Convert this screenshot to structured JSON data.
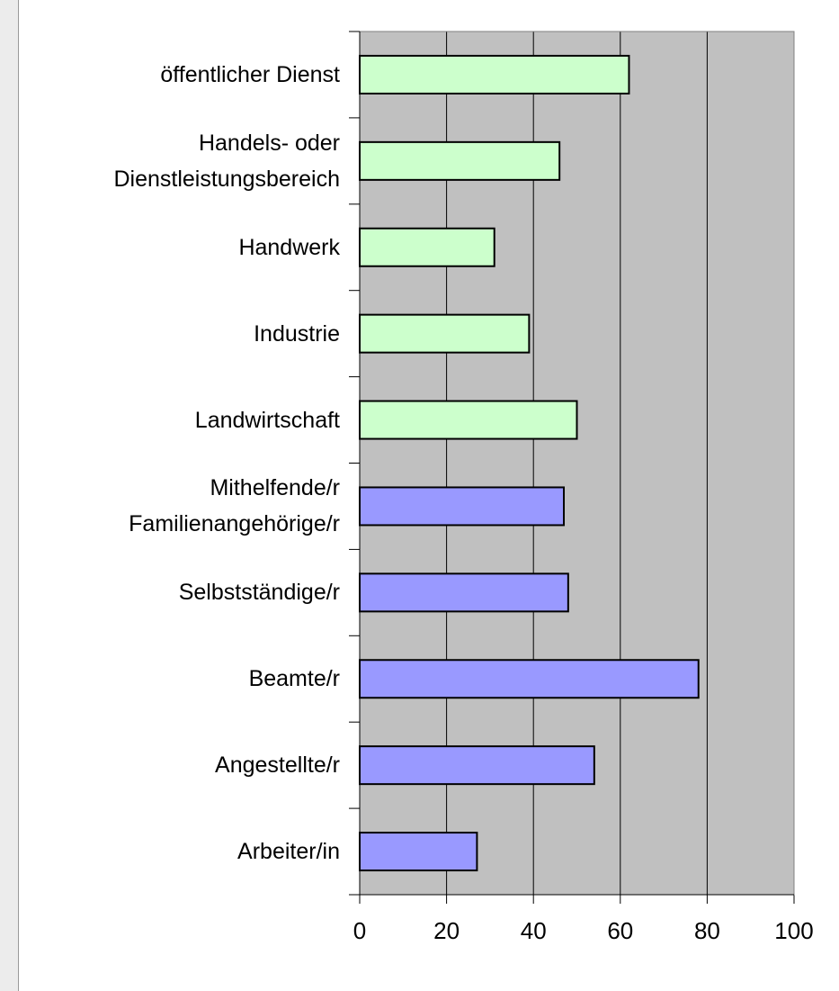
{
  "chart_data": {
    "type": "bar",
    "orientation": "horizontal",
    "categories": [
      "öffentlicher Dienst",
      "Handels- oder\nDienstleistungsbereich",
      "Handwerk",
      "Industrie",
      "Landwirtschaft",
      "Mithelfende/r\nFamilienangehörige/r",
      "Selbstständige/r",
      "Beamte/r",
      "Angestellte/r",
      "Arbeiter/in"
    ],
    "values": [
      62,
      46,
      31,
      39,
      50,
      47,
      48,
      78,
      54,
      27
    ],
    "colors": [
      "#ccffcc",
      "#ccffcc",
      "#ccffcc",
      "#ccffcc",
      "#ccffcc",
      "#9999ff",
      "#9999ff",
      "#9999ff",
      "#9999ff",
      "#9999ff"
    ],
    "xlim": [
      0,
      100
    ],
    "xticks": [
      0,
      20,
      40,
      60,
      80,
      100
    ],
    "grid": true
  }
}
